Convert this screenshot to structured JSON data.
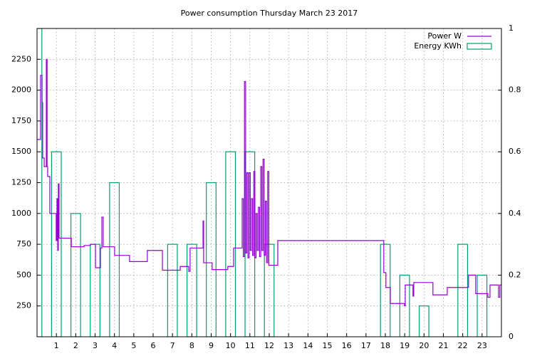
{
  "chart_data": {
    "type": "line",
    "title": "Power consumption Thursday March 23 2017",
    "xlim": [
      0,
      24
    ],
    "xticks": [
      1,
      2,
      3,
      4,
      5,
      6,
      7,
      8,
      9,
      10,
      11,
      12,
      13,
      14,
      15,
      16,
      17,
      18,
      19,
      20,
      21,
      22,
      23
    ],
    "ylim": [
      0,
      2500
    ],
    "yticks": [
      250,
      500,
      750,
      1000,
      1250,
      1500,
      1750,
      2000,
      2250
    ],
    "y2lim": [
      0,
      1
    ],
    "y2ticks": [
      0,
      0.2,
      0.4,
      0.6,
      0.8,
      1
    ],
    "grid": true,
    "legend": "top-right",
    "series": [
      {
        "name": "Power W",
        "color": "#9400d3",
        "x": [
          0,
          0.18,
          0.26,
          0.29,
          0.37,
          0.48,
          0.52,
          0.55,
          0.66,
          0.99,
          1.03,
          1.07,
          1.1,
          1.14,
          1.18,
          1.25,
          1.77,
          2.43,
          2.76,
          3.02,
          3.28,
          3.35,
          3.42,
          3.5,
          4.01,
          4.78,
          5.7,
          6.48,
          7.4,
          7.84,
          7.91,
          7.95,
          8.58,
          8.61,
          8.69,
          9.05,
          9.86,
          10.16,
          10.6,
          10.66,
          10.72,
          10.78,
          10.84,
          10.9,
          10.96,
          11.02,
          11.08,
          11.14,
          11.2,
          11.26,
          11.32,
          11.38,
          11.44,
          11.5,
          11.56,
          11.62,
          11.68,
          11.74,
          11.8,
          11.86,
          11.92,
          11.98,
          12.0,
          12.44,
          17.92,
          18.03,
          18.26,
          18.99,
          19.03,
          19.43,
          19.47,
          20.46,
          21.2,
          22.3,
          22.67,
          23.3,
          23.41,
          23.85,
          23.92
        ],
        "values": [
          1600,
          2120,
          1900,
          1450,
          1380,
          2250,
          1380,
          1300,
          1000,
          780,
          1120,
          700,
          1240,
          800,
          800,
          800,
          730,
          740,
          750,
          560,
          720,
          970,
          730,
          730,
          660,
          610,
          700,
          540,
          570,
          530,
          720,
          720,
          940,
          600,
          600,
          545,
          570,
          720,
          1120,
          650,
          2070,
          680,
          1330,
          640,
          1330,
          700,
          1120,
          660,
          1340,
          640,
          1000,
          700,
          1050,
          650,
          1380,
          700,
          1440,
          660,
          1100,
          600,
          1340,
          580,
          580,
          780,
          520,
          400,
          270,
          250,
          420,
          330,
          440,
          340,
          400,
          500,
          350,
          320,
          420,
          320,
          420
        ]
      },
      {
        "name": "Energy KWh",
        "color": "#009e73",
        "axis": "y2",
        "x": [
          0,
          1,
          2,
          3,
          4,
          5,
          6,
          7,
          8,
          9,
          10,
          11,
          12,
          13,
          14,
          15,
          16,
          17,
          18,
          19,
          20,
          21,
          22,
          23
        ],
        "values": [
          1,
          0.6,
          0.4,
          0.3,
          0.5,
          0,
          0,
          0.3,
          0.3,
          0.5,
          0.6,
          0.6,
          0.3,
          0,
          0,
          0,
          0,
          0,
          0.3,
          0.2,
          0.1,
          0,
          0.3,
          0.2
        ]
      }
    ]
  }
}
